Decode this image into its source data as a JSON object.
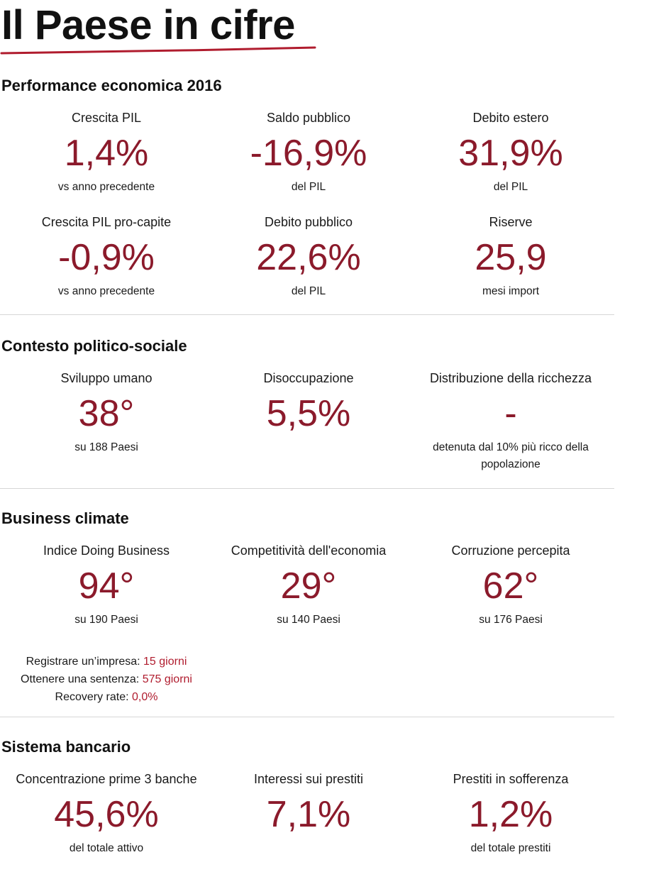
{
  "title": "Il Paese in cifre",
  "colors": {
    "accent": "#8b1a2b",
    "accent_line": "#b01c2e",
    "divider": "#d6d6d6"
  },
  "sections": [
    {
      "heading": "Performance economica 2016",
      "rows": [
        [
          {
            "label": "Crescita PIL",
            "value": "1,4%",
            "note": "vs anno precedente"
          },
          {
            "label": "Saldo pubblico",
            "value": "-16,9%",
            "note": "del PIL"
          },
          {
            "label": "Debito estero",
            "value": "31,9%",
            "note": "del PIL"
          }
        ],
        [
          {
            "label": "Crescita PIL pro-capite",
            "value": "-0,9%",
            "note": "vs anno precedente"
          },
          {
            "label": "Debito pubblico",
            "value": "22,6%",
            "note": "del PIL"
          },
          {
            "label": "Riserve",
            "value": "25,9",
            "note": "mesi import"
          }
        ]
      ]
    },
    {
      "heading": "Contesto politico-sociale",
      "rows": [
        [
          {
            "label": "Sviluppo umano",
            "value": "38°",
            "note": "su 188 Paesi"
          },
          {
            "label": "Disoccupazione",
            "value": "5,5%",
            "note": ""
          },
          {
            "label": "Distribuzione della ricchezza",
            "value": "-",
            "note": "detenuta dal 10% più ricco della popolazione"
          }
        ]
      ]
    },
    {
      "heading": "Business climate",
      "rows": [
        [
          {
            "label": "Indice Doing Business",
            "value": "94°",
            "note": "su 190 Paesi"
          },
          {
            "label": "Competitività dell'economia",
            "value": "29°",
            "note": "su 140 Paesi"
          },
          {
            "label": "Corruzione percepita",
            "value": "62°",
            "note": "su 176 Paesi"
          }
        ]
      ],
      "extras": [
        {
          "label": "Registrare un’impresa:",
          "value": "15 giorni"
        },
        {
          "label": "Ottenere una sentenza:",
          "value": "575 giorni"
        },
        {
          "label": "Recovery rate:",
          "value": "0,0%"
        }
      ]
    },
    {
      "heading": "Sistema bancario",
      "rows": [
        [
          {
            "label": "Concentrazione prime 3 banche",
            "value": "45,6%",
            "note": "del totale attivo"
          },
          {
            "label": "Interessi sui prestiti",
            "value": "7,1%",
            "note": ""
          },
          {
            "label": "Prestiti in sofferenza",
            "value": "1,2%",
            "note": "del totale prestiti"
          }
        ]
      ]
    }
  ]
}
